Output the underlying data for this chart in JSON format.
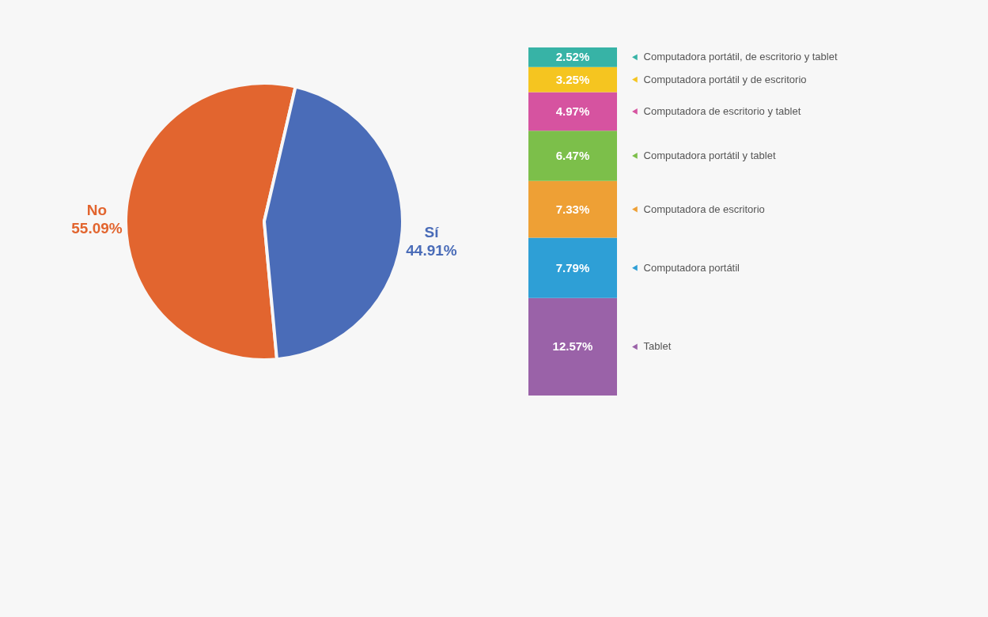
{
  "chart_data": [
    {
      "type": "pie",
      "categories": [
        "No",
        "Sí"
      ],
      "values": [
        55.09,
        44.91
      ],
      "value_labels": [
        "55.09%",
        "44.91%"
      ],
      "colors": [
        "#e2652f",
        "#4a6cb8"
      ],
      "legend": false
    },
    {
      "type": "bar",
      "stacked": true,
      "categories": [
        null
      ],
      "legend": "right",
      "series": [
        {
          "name": "Tablet",
          "color": "#9a62a8",
          "values": [
            12.57
          ],
          "value_labels": [
            "12.57%"
          ]
        },
        {
          "name": "Computadora portátil",
          "color": "#2e9fd6",
          "values": [
            7.79
          ],
          "value_labels": [
            "7.79%"
          ]
        },
        {
          "name": "Computadora de escritorio",
          "color": "#eea035",
          "values": [
            7.33
          ],
          "value_labels": [
            "7.33%"
          ]
        },
        {
          "name": "Computadora portátil y tablet",
          "color": "#7cbf4a",
          "values": [
            6.47
          ],
          "value_labels": [
            "6.47%"
          ]
        },
        {
          "name": "Computadora de escritorio y tablet",
          "color": "#d653a0",
          "values": [
            4.97
          ],
          "value_labels": [
            "4.97%"
          ]
        },
        {
          "name": "Computadora portátil y de escritorio",
          "color": "#f5c520",
          "values": [
            3.25
          ],
          "value_labels": [
            "3.25%"
          ]
        },
        {
          "name": "Computadora portátil, de escritorio y tablet",
          "color": "#37b3a6",
          "values": [
            2.52
          ],
          "value_labels": [
            "2.52%"
          ]
        }
      ]
    }
  ]
}
